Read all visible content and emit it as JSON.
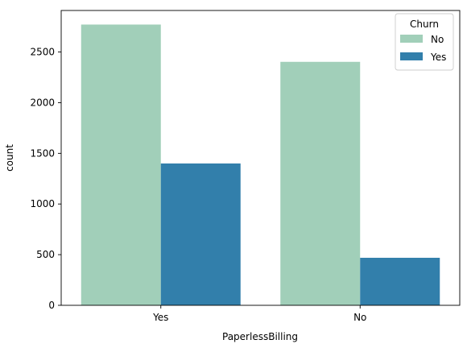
{
  "chart_data": {
    "type": "bar",
    "title": "",
    "xlabel": "PaperlessBilling",
    "ylabel": "count",
    "categories": [
      "Yes",
      "No"
    ],
    "series": [
      {
        "name": "No",
        "values": [
          2771,
          2403
        ],
        "color": "#a1cfb9"
      },
      {
        "name": "Yes",
        "values": [
          1400,
          469
        ],
        "color": "#327fab"
      }
    ],
    "ylim": [
      0,
      2910
    ],
    "yticks": [
      0,
      500,
      1000,
      1500,
      2000,
      2500
    ],
    "legend": {
      "title": "Churn",
      "placement": "top-right"
    },
    "grid": false
  }
}
